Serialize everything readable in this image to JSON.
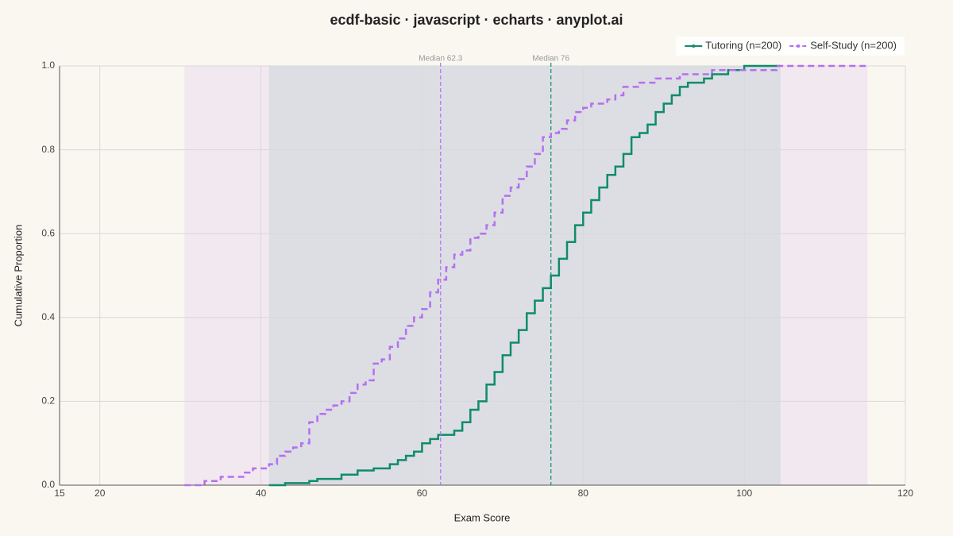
{
  "chart_data": {
    "type": "ecdf",
    "title": "ecdf-basic · javascript · echarts · anyplot.ai",
    "x_label": "Exam Score",
    "y_label": "Cumulative Proportion",
    "xlim": [
      15,
      120
    ],
    "xticks": [
      15,
      20,
      40,
      60,
      80,
      100,
      120
    ],
    "ylim": [
      0,
      1
    ],
    "yticks": [
      {
        "value": 0,
        "label": "0.0"
      },
      0.2,
      0.4,
      0.6,
      0.8,
      {
        "value": 1,
        "label": "1.0"
      }
    ],
    "grid": true,
    "legend": "top-right",
    "series": [
      {
        "name": "Tutoring (n=200)",
        "color": "#0e8c6a",
        "dash": false,
        "range": [
          41,
          104.5
        ],
        "median": 76,
        "median_label": "Median 76",
        "x": [
          41,
          43,
          46,
          47,
          50,
          52,
          54,
          56,
          57,
          58,
          59,
          60,
          61,
          62,
          64,
          65,
          66,
          67,
          68,
          69,
          70,
          71,
          72,
          73,
          74,
          75,
          76,
          77,
          78,
          79,
          80,
          81,
          82,
          83,
          84,
          85,
          86,
          87,
          88,
          89,
          90,
          91,
          92,
          93,
          95,
          96,
          98,
          100,
          104.5
        ],
        "values": [
          0,
          0.005,
          0.01,
          0.015,
          0.025,
          0.035,
          0.04,
          0.05,
          0.06,
          0.07,
          0.08,
          0.1,
          0.11,
          0.12,
          0.13,
          0.15,
          0.18,
          0.2,
          0.24,
          0.27,
          0.31,
          0.34,
          0.37,
          0.41,
          0.44,
          0.47,
          0.5,
          0.54,
          0.58,
          0.62,
          0.65,
          0.68,
          0.71,
          0.74,
          0.76,
          0.79,
          0.83,
          0.84,
          0.86,
          0.89,
          0.91,
          0.93,
          0.95,
          0.96,
          0.97,
          0.98,
          0.99,
          1,
          1
        ]
      },
      {
        "name": "Self-Study (n=200)",
        "color": "#b56ff0",
        "dash": true,
        "range": [
          30.5,
          115.3
        ],
        "median": 62.3,
        "median_label": "Median 62.3",
        "x": [
          30.5,
          33,
          35,
          38,
          39,
          41,
          42,
          43,
          44,
          45,
          46,
          47,
          48,
          49,
          50,
          51,
          52,
          53,
          54,
          55,
          56,
          57,
          58,
          59,
          60,
          61,
          62,
          63,
          64,
          65,
          66,
          67,
          68,
          69,
          70,
          71,
          72,
          73,
          74,
          75,
          76,
          77,
          78,
          79,
          80,
          81,
          83,
          84,
          85,
          87,
          89,
          92,
          96,
          104,
          115.3
        ],
        "values": [
          0,
          0.01,
          0.02,
          0.03,
          0.04,
          0.05,
          0.07,
          0.08,
          0.09,
          0.1,
          0.15,
          0.17,
          0.18,
          0.19,
          0.2,
          0.22,
          0.24,
          0.25,
          0.29,
          0.3,
          0.33,
          0.35,
          0.38,
          0.4,
          0.42,
          0.46,
          0.49,
          0.52,
          0.55,
          0.56,
          0.59,
          0.6,
          0.62,
          0.65,
          0.69,
          0.71,
          0.73,
          0.76,
          0.79,
          0.83,
          0.84,
          0.85,
          0.87,
          0.89,
          0.9,
          0.91,
          0.92,
          0.93,
          0.95,
          0.96,
          0.97,
          0.98,
          0.99,
          1,
          1
        ]
      }
    ]
  }
}
